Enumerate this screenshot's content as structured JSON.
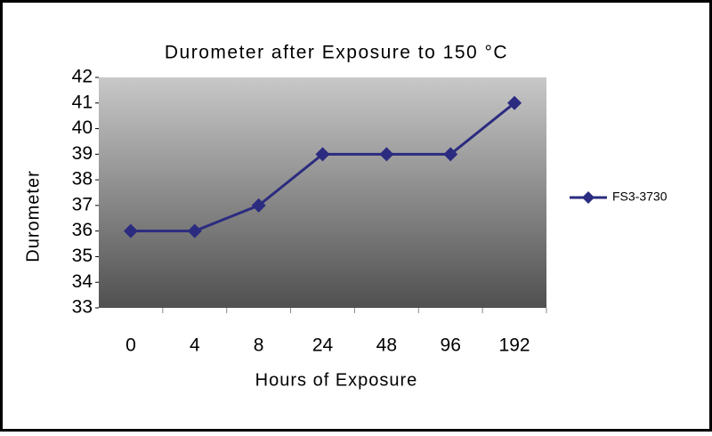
{
  "chart_data": {
    "type": "line",
    "title": "Durometer after Exposure to 150 °C",
    "x_label": "Hours of Exposure",
    "y_label": "Durometer",
    "categories": [
      "0",
      "4",
      "8",
      "24",
      "48",
      "96",
      "192"
    ],
    "series": [
      {
        "name": "FS3-3730",
        "color": "#2b2b80",
        "values": [
          36,
          36,
          37,
          39,
          39,
          39,
          41
        ]
      }
    ],
    "ylim": [
      33,
      42
    ],
    "yticks": [
      33,
      34,
      35,
      36,
      37,
      38,
      39,
      40,
      41,
      42
    ],
    "legend": "right"
  }
}
